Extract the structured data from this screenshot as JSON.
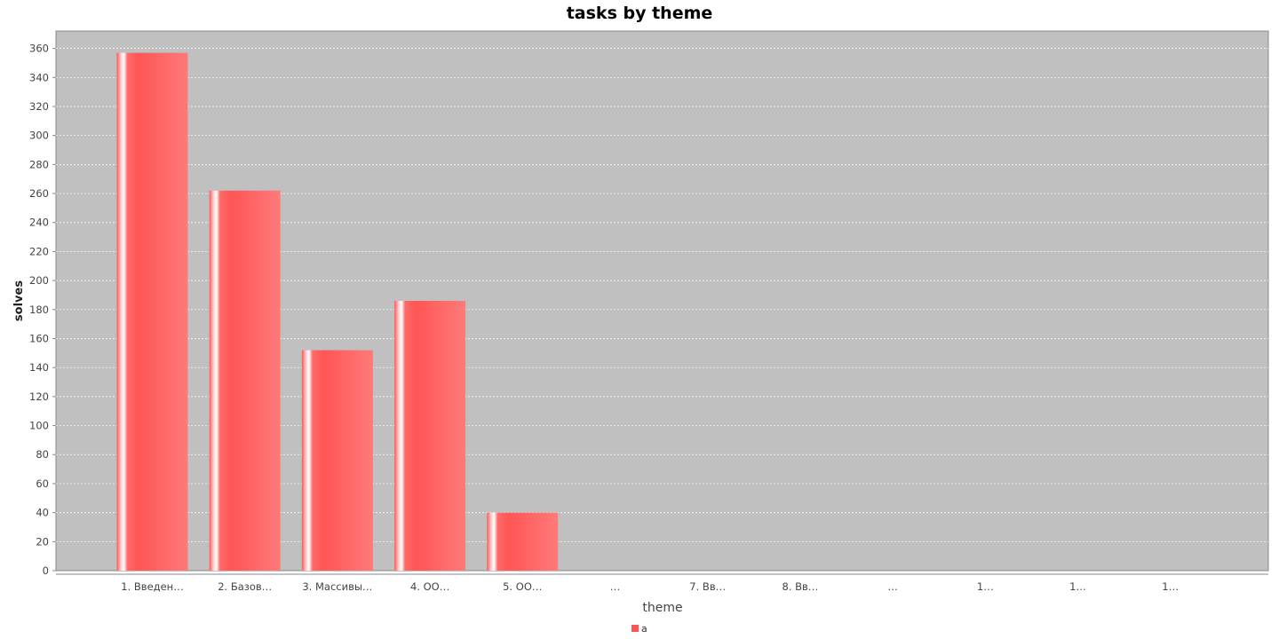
{
  "chart_data": {
    "type": "bar",
    "title": "tasks by theme",
    "xlabel": "theme",
    "ylabel": "solves",
    "categories": [
      "1. Введен…",
      "2. Базов…",
      "3. Массивы…",
      "4. ОО…",
      "5. ОО…",
      "…",
      "7. Вв…",
      "8. Вв…",
      "…",
      "1…",
      "1…",
      "1…"
    ],
    "series": [
      {
        "name": "a",
        "values": [
          357,
          262,
          152,
          186,
          40,
          0,
          0,
          0,
          0,
          0,
          0,
          0
        ]
      }
    ],
    "ylim": [
      0,
      372
    ],
    "yticks": [
      0,
      20,
      40,
      60,
      80,
      100,
      120,
      140,
      160,
      180,
      200,
      220,
      240,
      260,
      280,
      300,
      320,
      340,
      360
    ],
    "grid": true,
    "legend_position": "bottom-center",
    "colors": {
      "bar": "#ff5555",
      "plot_background": "#c0c0c0",
      "gridline": "#ffffff"
    }
  }
}
